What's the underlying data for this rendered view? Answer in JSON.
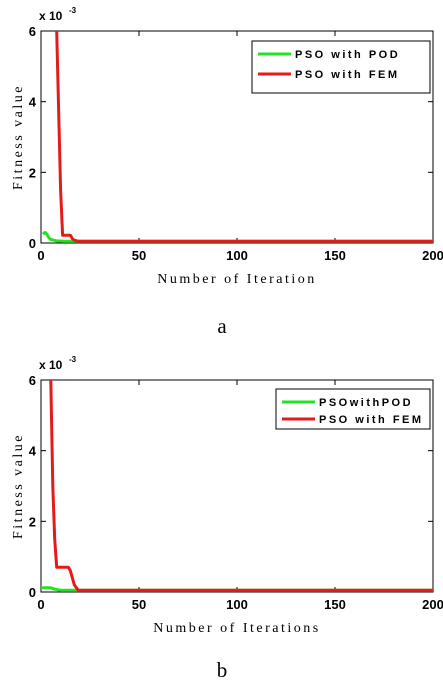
{
  "chart_data": [
    {
      "type": "line",
      "panel_label": "a",
      "xlabel": "Number of Iteration",
      "ylabel": "Fitness value",
      "y_multiplier": "x 10",
      "y_multiplier_exp": "-3",
      "xlim": [
        0,
        200
      ],
      "ylim": [
        0,
        6
      ],
      "x_ticks": [
        "0",
        "50",
        "100",
        "150",
        "200"
      ],
      "y_ticks": [
        "0",
        "2",
        "4",
        "6"
      ],
      "grid": false,
      "legend_position": "top-right",
      "series": [
        {
          "name": "PSO with POD",
          "color": "#22e322",
          "x": [
            1,
            2,
            3,
            4,
            5,
            8,
            12,
            200
          ],
          "y": [
            0.25,
            0.3,
            0.25,
            0.15,
            0.1,
            0.06,
            0.05,
            0.05
          ]
        },
        {
          "name": "PSO with FEM",
          "color": "#e31b1b",
          "x": [
            8,
            9,
            10,
            11,
            15,
            16,
            17,
            19,
            200
          ],
          "y": [
            6.0,
            3.8,
            1.5,
            0.22,
            0.22,
            0.12,
            0.08,
            0.05,
            0.05
          ]
        }
      ]
    },
    {
      "type": "line",
      "panel_label": "b",
      "xlabel": "Number of Iterations",
      "ylabel": "Fitness value",
      "y_multiplier": "x 10",
      "y_multiplier_exp": "-3",
      "xlim": [
        0,
        200
      ],
      "ylim": [
        0,
        6
      ],
      "x_ticks": [
        "0",
        "50",
        "100",
        "150",
        "200"
      ],
      "y_ticks": [
        "0",
        "2",
        "4",
        "6"
      ],
      "grid": false,
      "legend_position": "top-right",
      "series": [
        {
          "name": "PSOwithPOD",
          "color": "#22e322",
          "x": [
            0,
            5,
            7,
            10,
            200
          ],
          "y": [
            0.12,
            0.12,
            0.08,
            0.05,
            0.05
          ]
        },
        {
          "name": "PSO with FEM",
          "color": "#e31b1b",
          "x": [
            5,
            6,
            7,
            8,
            14,
            15,
            17,
            19,
            200
          ],
          "y": [
            6.0,
            3.0,
            1.5,
            0.7,
            0.7,
            0.6,
            0.2,
            0.05,
            0.05
          ]
        }
      ]
    }
  ]
}
